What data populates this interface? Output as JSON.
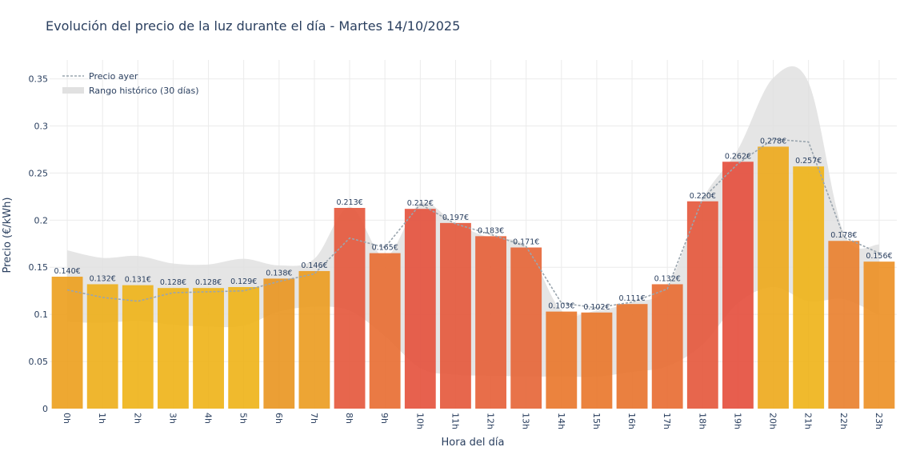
{
  "chart_data": {
    "type": "bar",
    "title": "Evolución del precio de la luz durante el día - Martes 14/10/2025",
    "xlabel": "Hora del día",
    "ylabel": "Precio (€/kWh)",
    "ylim": [
      0,
      0.37
    ],
    "yticks": [
      0,
      0.05,
      0.1,
      0.15,
      0.2,
      0.25,
      0.3,
      0.35
    ],
    "ytick_labels": [
      "0",
      "0.05",
      "0.1",
      "0.15",
      "0.2",
      "0.25",
      "0.3",
      "0.35"
    ],
    "grid": true,
    "legend_position": "top-left",
    "categories": [
      "0h",
      "1h",
      "2h",
      "3h",
      "4h",
      "5h",
      "6h",
      "7h",
      "8h",
      "9h",
      "10h",
      "11h",
      "12h",
      "13h",
      "14h",
      "15h",
      "16h",
      "17h",
      "18h",
      "19h",
      "20h",
      "21h",
      "22h",
      "23h"
    ],
    "series": [
      {
        "values": [
          0.14,
          0.132,
          0.131,
          0.128,
          0.128,
          0.129,
          0.138,
          0.146,
          0.213,
          0.165,
          0.212,
          0.197,
          0.183,
          0.171,
          0.103,
          0.102,
          0.111,
          0.132,
          0.22,
          0.262,
          0.278,
          0.257,
          0.178,
          0.156
        ],
        "labels": [
          "0.140€",
          "0.132€",
          "0.131€",
          "0.128€",
          "0.128€",
          "0.129€",
          "0.138€",
          "0.146€",
          "0.213€",
          "0.165€",
          "0.212€",
          "0.197€",
          "0.183€",
          "0.171€",
          "0.103€",
          "0.102€",
          "0.111€",
          "0.132€",
          "0.220€",
          "0.262€",
          "0.278€",
          "0.257€",
          "0.178€",
          "0.156€"
        ],
        "colors": [
          "#ec9f1c",
          "#edae18",
          "#eeb316",
          "#eeb316",
          "#eeb316",
          "#eeb316",
          "#e9951f",
          "#eb9b1e",
          "#e4553a",
          "#e86b30",
          "#e4503b",
          "#e4563a",
          "#e65e36",
          "#e66435",
          "#e97529",
          "#e97529",
          "#e8722b",
          "#e86a30",
          "#e4553a",
          "#e44d3b",
          "#eda91a",
          "#eeb316",
          "#e97e2b",
          "#ec8f22"
        ]
      },
      {
        "name": "Precio ayer",
        "color": "#9aa5ae",
        "values": [
          0.126,
          0.118,
          0.114,
          0.123,
          0.124,
          0.125,
          0.135,
          0.143,
          0.181,
          0.171,
          0.217,
          0.196,
          0.185,
          0.172,
          0.112,
          0.107,
          0.113,
          0.127,
          0.223,
          0.26,
          0.286,
          0.283,
          0.182,
          0.165
        ]
      },
      {
        "name": "Rango histórico (30 días)",
        "color": "#e1e1e1",
        "lower": [
          0.092,
          0.091,
          0.093,
          0.089,
          0.087,
          0.088,
          0.103,
          0.108,
          0.104,
          0.077,
          0.043,
          0.036,
          0.035,
          0.034,
          0.034,
          0.034,
          0.039,
          0.045,
          0.068,
          0.112,
          0.129,
          0.114,
          0.116,
          0.099
        ],
        "upper": [
          0.168,
          0.16,
          0.162,
          0.154,
          0.153,
          0.159,
          0.152,
          0.159,
          0.214,
          0.161,
          0.218,
          0.196,
          0.181,
          0.172,
          0.104,
          0.104,
          0.113,
          0.129,
          0.222,
          0.275,
          0.351,
          0.346,
          0.186,
          0.174
        ]
      }
    ]
  }
}
